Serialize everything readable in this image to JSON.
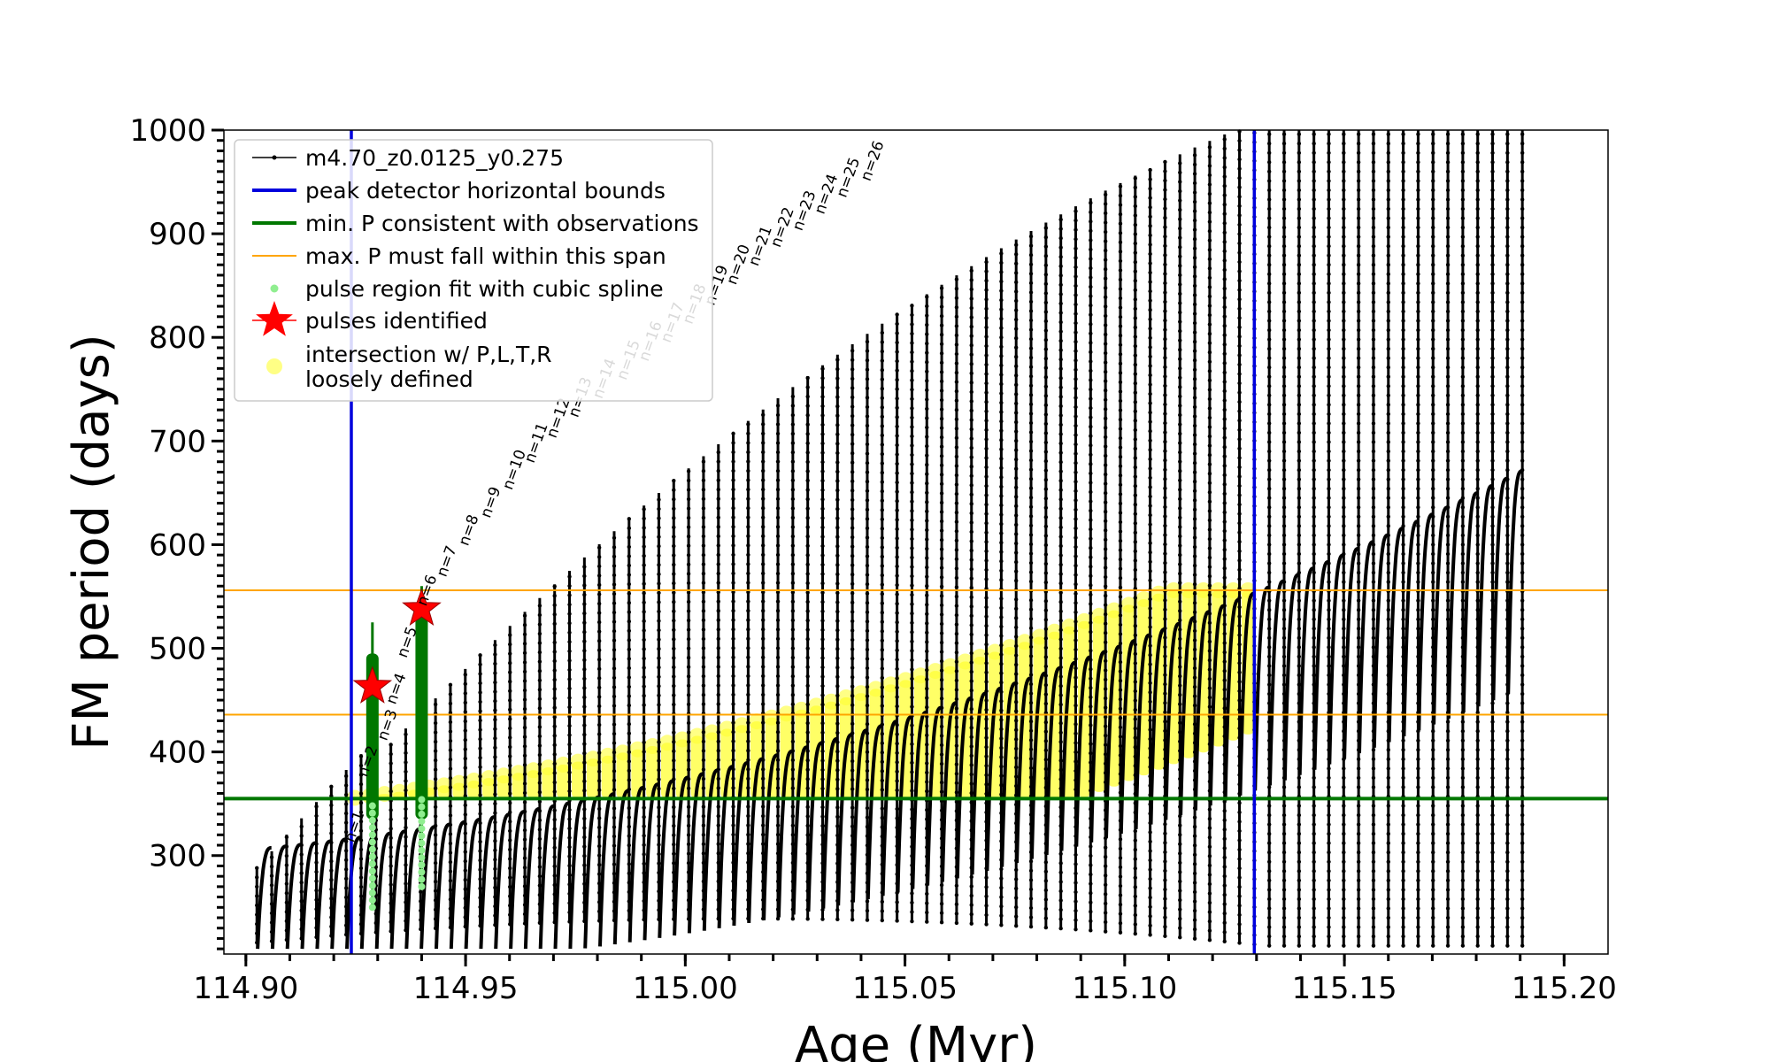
{
  "colors": {
    "track": "#000000",
    "bounds": "#0000dd",
    "minP": "#007700",
    "maxPspan": "#ffa500",
    "spline": "#90ee90",
    "pulse": "#ff0000",
    "intersection": "#ffff33"
  },
  "chart_data": {
    "type": "line",
    "xlabel": "Age (Myr)",
    "ylabel": "FM period (days)",
    "xlim": [
      114.895,
      115.21
    ],
    "ylim": [
      205,
      1000
    ],
    "x_ticks": [
      "114.90",
      "114.95",
      "115.00",
      "115.05",
      "115.10",
      "115.15",
      "115.20"
    ],
    "x_tick_values": [
      114.9,
      114.95,
      115.0,
      115.05,
      115.1,
      115.15,
      115.2
    ],
    "y_ticks": [
      "300",
      "400",
      "500",
      "600",
      "700",
      "800",
      "900",
      "1000"
    ],
    "y_tick_values": [
      300,
      400,
      500,
      600,
      700,
      800,
      900,
      1000
    ],
    "grid": false,
    "legend_position": "top-left",
    "legend": [
      {
        "label": "m4.70_z0.0125_y0.275",
        "kind": "track"
      },
      {
        "label": "peak detector horizontal bounds",
        "kind": "bounds"
      },
      {
        "label": "min. P consistent with observations",
        "kind": "minP"
      },
      {
        "label": "max. P must fall within this span",
        "kind": "maxPspan"
      },
      {
        "label": "pulse region fit with cubic spline",
        "kind": "spline"
      },
      {
        "label": "pulses identified",
        "kind": "pulse"
      },
      {
        "label": "intersection w/ P,L,T,R",
        "label2": "loosely defined",
        "kind": "intersection"
      }
    ],
    "peak_detector_bounds_x": [
      114.924,
      115.1295
    ],
    "min_P_observed": 355,
    "max_P_span": [
      436,
      556
    ],
    "pulses_identified": [
      {
        "x": 114.9288,
        "y": 463
      },
      {
        "x": 114.94,
        "y": 538
      }
    ],
    "spline_regions": [
      {
        "x": 114.9288,
        "ymin": 250,
        "ymax": 525
      },
      {
        "x": 114.94,
        "ymin": 270,
        "ymax": 560
      }
    ],
    "pulse_count": 86,
    "pulse_labels": [
      "n=1",
      "n=2",
      "n=3",
      "n=4",
      "n=5",
      "n=6",
      "n=7",
      "n=8",
      "n=9",
      "n=10",
      "n=11",
      "n=12",
      "n=13",
      "n=14",
      "n=15",
      "n=16",
      "n=17",
      "n=18",
      "n=19",
      "n=20",
      "n=21",
      "n=22",
      "n=23",
      "n=24",
      "n=25",
      "n=26"
    ],
    "pulse_label_ages": [
      114.9245,
      114.9275,
      114.932,
      114.934,
      114.9365,
      114.941,
      114.9455,
      114.9505,
      114.9555,
      114.9605,
      114.9655,
      114.9705,
      114.9755,
      114.981,
      114.9865,
      114.9915,
      114.9965,
      115.0015,
      115.0065,
      115.0115,
      115.0165,
      115.0215,
      115.0265,
      115.0315,
      115.0365,
      115.042
    ],
    "pulse_label_periods": [
      312,
      375,
      410,
      445,
      490,
      540,
      568,
      598,
      625,
      652,
      678,
      702,
      722,
      740,
      758,
      776,
      794,
      812,
      830,
      850,
      868,
      886,
      902,
      918,
      934,
      950
    ],
    "pulse_label_colors": [
      "#000000",
      "#000000",
      "#000000",
      "#000000",
      "#000000",
      "#000000",
      "#000000",
      "#000000",
      "#000000",
      "#000000",
      "#000000",
      "#000000",
      "#bbbbbb",
      "#bbbbbb",
      "#bbbbbb",
      "#000000",
      "#000000",
      "#000000",
      "#000000",
      "#000000",
      "#000000",
      "#000000",
      "#000000",
      "#000000",
      "#000000",
      "#000000"
    ]
  }
}
